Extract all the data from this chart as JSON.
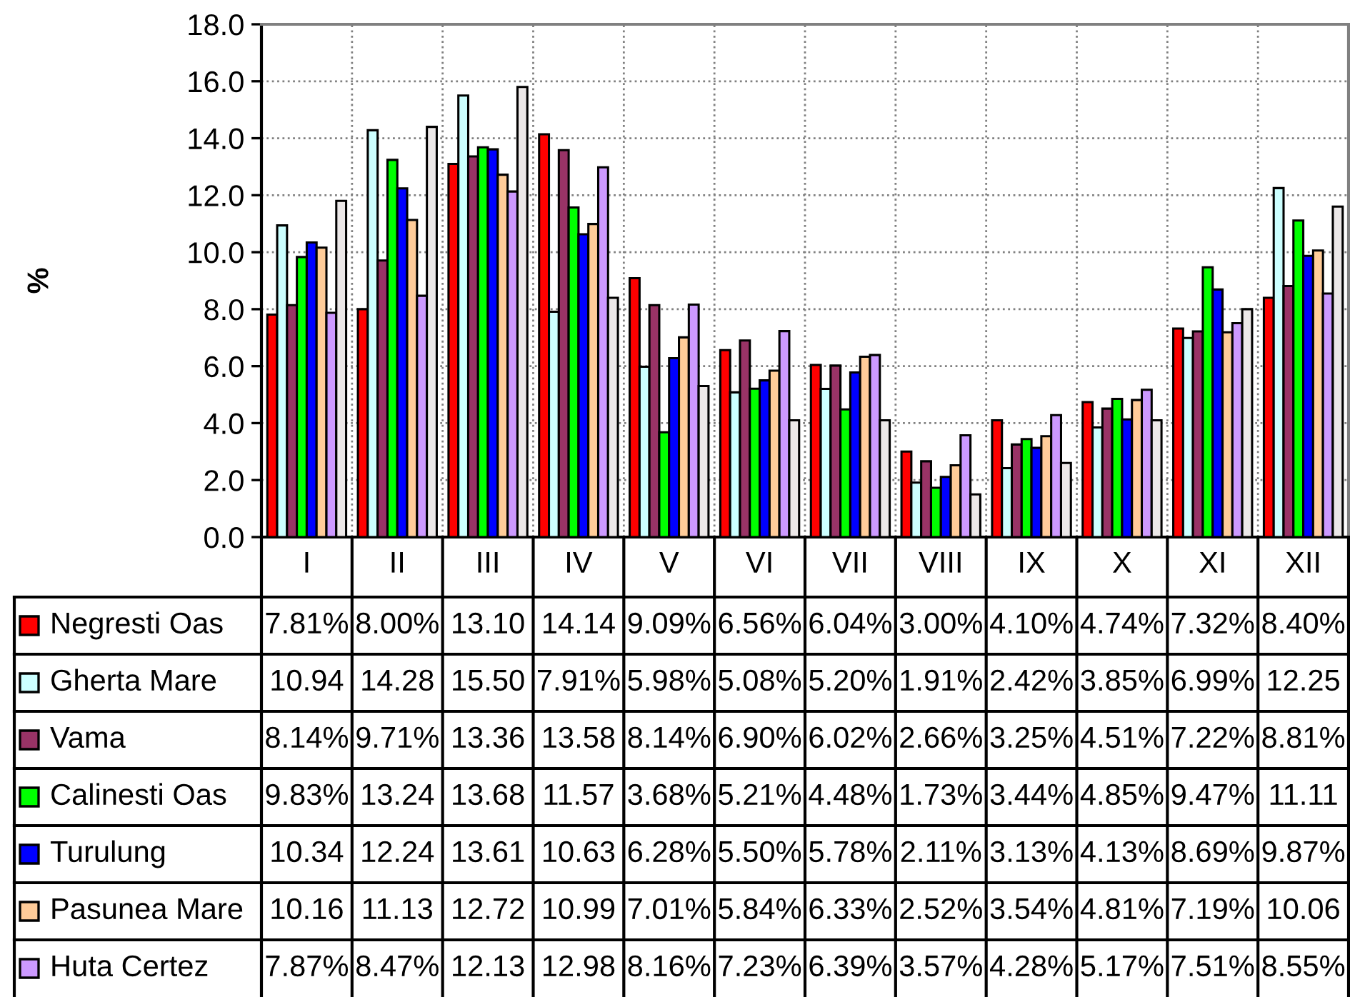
{
  "chart_data": {
    "type": "bar",
    "ylabel": "%",
    "categories": [
      "I",
      "II",
      "III",
      "IV",
      "V",
      "VI",
      "VII",
      "VIII",
      "IX",
      "X",
      "XI",
      "XII"
    ],
    "ylim": [
      0,
      18
    ],
    "yticks": [
      {
        "value": 0,
        "label": "0.0"
      },
      {
        "value": 2,
        "label": "2.0"
      },
      {
        "value": 4,
        "label": "4.0"
      },
      {
        "value": 6,
        "label": "6.0"
      },
      {
        "value": 8,
        "label": "8.0"
      },
      {
        "value": 10,
        "label": "10.0"
      },
      {
        "value": 12,
        "label": "12.0"
      },
      {
        "value": 14,
        "label": "14.0"
      },
      {
        "value": 16,
        "label": "16.0"
      },
      {
        "value": 18,
        "label": "18.0"
      }
    ],
    "grid": true,
    "legend": "bottom",
    "series": [
      {
        "name": "Negresti Oas",
        "color": "#ff0000",
        "values": [
          7.81,
          8.0,
          13.1,
          14.14,
          9.09,
          6.56,
          6.04,
          3.0,
          4.1,
          4.74,
          7.32,
          8.4
        ],
        "value_labels": [
          "7.81%",
          "8.00%",
          "13.10",
          "14.14",
          "9.09%",
          "6.56%",
          "6.04%",
          "3.00%",
          "4.10%",
          "4.74%",
          "7.32%",
          "8.40%"
        ]
      },
      {
        "name": "Gherta Mare",
        "color": "#ccffff",
        "values": [
          10.94,
          14.28,
          15.5,
          7.91,
          5.98,
          5.08,
          5.2,
          1.91,
          2.42,
          3.85,
          6.99,
          12.25
        ],
        "value_labels": [
          "10.94",
          "14.28",
          "15.50",
          "7.91%",
          "5.98%",
          "5.08%",
          "5.20%",
          "1.91%",
          "2.42%",
          "3.85%",
          "6.99%",
          "12.25"
        ]
      },
      {
        "name": "Vama",
        "color": "#993366",
        "values": [
          8.14,
          9.71,
          13.36,
          13.58,
          8.14,
          6.9,
          6.02,
          2.66,
          3.25,
          4.51,
          7.22,
          8.81
        ],
        "value_labels": [
          "8.14%",
          "9.71%",
          "13.36",
          "13.58",
          "8.14%",
          "6.90%",
          "6.02%",
          "2.66%",
          "3.25%",
          "4.51%",
          "7.22%",
          "8.81%"
        ]
      },
      {
        "name": "Calinesti Oas",
        "color": "#00ff00",
        "values": [
          9.83,
          13.24,
          13.68,
          11.57,
          3.68,
          5.21,
          4.48,
          1.73,
          3.44,
          4.85,
          9.47,
          11.11
        ],
        "value_labels": [
          "9.83%",
          "13.24",
          "13.68",
          "11.57",
          "3.68%",
          "5.21%",
          "4.48%",
          "1.73%",
          "3.44%",
          "4.85%",
          "9.47%",
          "11.11"
        ]
      },
      {
        "name": "Turulung",
        "color": "#0000ff",
        "values": [
          10.34,
          12.24,
          13.61,
          10.63,
          6.28,
          5.5,
          5.78,
          2.11,
          3.13,
          4.13,
          8.69,
          9.87
        ],
        "value_labels": [
          "10.34",
          "12.24",
          "13.61",
          "10.63",
          "6.28%",
          "5.50%",
          "5.78%",
          "2.11%",
          "3.13%",
          "4.13%",
          "8.69%",
          "9.87%"
        ]
      },
      {
        "name": "Pasunea Mare",
        "color": "#ffcc99",
        "values": [
          10.16,
          11.13,
          12.72,
          10.99,
          7.01,
          5.84,
          6.33,
          2.52,
          3.54,
          4.81,
          7.19,
          10.06
        ],
        "value_labels": [
          "10.16",
          "11.13",
          "12.72",
          "10.99",
          "7.01%",
          "5.84%",
          "6.33%",
          "2.52%",
          "3.54%",
          "4.81%",
          "7.19%",
          "10.06"
        ]
      },
      {
        "name": "Huta Certez",
        "color": "#cc99ff",
        "values": [
          7.87,
          8.47,
          12.13,
          12.98,
          8.16,
          7.23,
          6.39,
          3.57,
          4.28,
          5.17,
          7.51,
          8.55
        ],
        "value_labels": [
          "7.87%",
          "8.47%",
          "12.13",
          "12.98",
          "8.16%",
          "7.23%",
          "6.39%",
          "3.57%",
          "4.28%",
          "5.17%",
          "7.51%",
          "8.55%"
        ]
      },
      {
        "color": "#ece8e8",
        "values": [
          11.8,
          14.4,
          15.8,
          8.4,
          5.3,
          4.1,
          4.1,
          1.5,
          2.6,
          4.1,
          8.0,
          11.6
        ]
      }
    ]
  }
}
